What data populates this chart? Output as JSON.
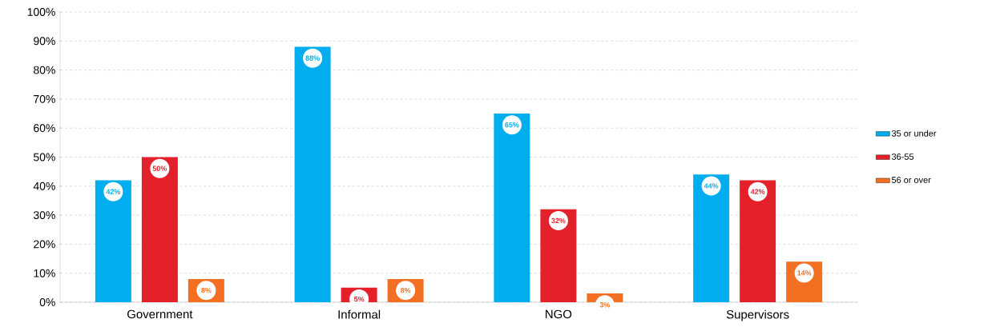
{
  "chart_data": {
    "type": "bar",
    "categories": [
      "Government",
      "Informal",
      "NGO",
      "Supervisors"
    ],
    "series": [
      {
        "name": "35 or under",
        "color": "#00aeef",
        "values": [
          42,
          88,
          65,
          44
        ],
        "value_labels": [
          "42%",
          "88%",
          "65%",
          "44%"
        ]
      },
      {
        "name": "36-55",
        "color": "#e4212b",
        "values": [
          50,
          5,
          32,
          42
        ],
        "value_labels": [
          "50%",
          "5%",
          "32%",
          "42%"
        ]
      },
      {
        "name": "56 or over",
        "color": "#f36f21",
        "values": [
          8,
          8,
          3,
          14
        ],
        "value_labels": [
          "8%",
          "8%",
          "3%",
          "14%"
        ]
      }
    ],
    "ylim": [
      0,
      100
    ],
    "yticks": [
      {
        "value": 0,
        "label": "0%"
      },
      {
        "value": 10,
        "label": "10%"
      },
      {
        "value": 20,
        "label": "20%"
      },
      {
        "value": 30,
        "label": "30%"
      },
      {
        "value": 40,
        "label": "40%"
      },
      {
        "value": 50,
        "label": "50%"
      },
      {
        "value": 60,
        "label": "60%"
      },
      {
        "value": 70,
        "label": "70%"
      },
      {
        "value": 80,
        "label": "80%"
      },
      {
        "value": 90,
        "label": "90%"
      },
      {
        "value": 100,
        "label": "100%"
      }
    ],
    "grid": "y",
    "legend": "right"
  }
}
